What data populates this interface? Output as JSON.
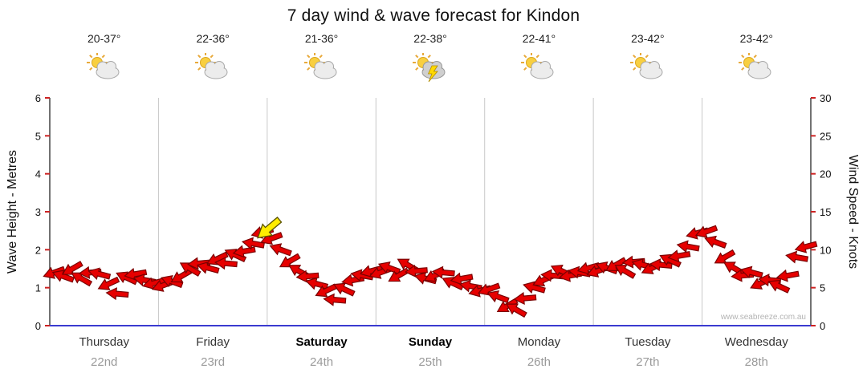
{
  "title": "7 day wind & wave forecast for Kindon",
  "watermark": "www.seabreeze.com.au",
  "colors": {
    "arrow": "#e60000",
    "arrow_outline": "#7a0000",
    "highlight": "#ffec00",
    "highlight_outline": "#5a5200",
    "grid": "#c8c8c8",
    "axis": "#444444",
    "axis_bottom": "#3b3bd0",
    "tick": "#cc2222",
    "tick_text": "#111111"
  },
  "chart_data": {
    "type": "wind-wave-forecast",
    "title": "7 day wind & wave forecast for Kindon",
    "left_axis": {
      "label": "Wave Height - Metres",
      "range": [
        0,
        6
      ],
      "ticks": [
        0,
        1,
        2,
        3,
        4,
        5,
        6
      ]
    },
    "right_axis": {
      "label": "Wind Speed - Knots",
      "range": [
        0,
        30
      ],
      "ticks": [
        0,
        5,
        10,
        15,
        20,
        25,
        30
      ]
    },
    "days": [
      {
        "name": "Thursday",
        "date": "22nd",
        "temp": "20-37°",
        "icon": "sun-cloud",
        "bold": false
      },
      {
        "name": "Friday",
        "date": "23rd",
        "temp": "22-36°",
        "icon": "sun-cloud",
        "bold": false
      },
      {
        "name": "Saturday",
        "date": "24th",
        "temp": "21-36°",
        "icon": "sun-cloud",
        "bold": true
      },
      {
        "name": "Sunday",
        "date": "25th",
        "temp": "22-38°",
        "icon": "storm",
        "bold": true
      },
      {
        "name": "Monday",
        "date": "26th",
        "temp": "22-41°",
        "icon": "sun-cloud",
        "bold": false
      },
      {
        "name": "Tuesday",
        "date": "27th",
        "temp": "23-42°",
        "icon": "sun-cloud",
        "bold": false
      },
      {
        "name": "Wednesday",
        "date": "28th",
        "temp": "23-42°",
        "icon": "sun-cloud",
        "bold": false
      }
    ],
    "samples_per_day": 12,
    "wind_knots": [
      7,
      6.5,
      7.5,
      6.2,
      7,
      6.8,
      5.5,
      4.2,
      6.3,
      6.8,
      6,
      5.6,
      5.3,
      5.8,
      6.5,
      7.5,
      8.2,
      7.6,
      8.8,
      8.2,
      9.3,
      9.8,
      10.8,
      12.3,
      11.5,
      10,
      8.5,
      7.2,
      6.5,
      5.5,
      4.6,
      3.4,
      4.8,
      6,
      6.6,
      7.2,
      7,
      7.6,
      6.6,
      8,
      7.2,
      6.2,
      6.6,
      7,
      5.6,
      6.2,
      5.2,
      4.6,
      4.8,
      3.8,
      2.6,
      2.1,
      3.6,
      5,
      6,
      6.6,
      7.2,
      6.6,
      7,
      7.6,
      7.2,
      7.6,
      8,
      7.2,
      8.4,
      8,
      7.6,
      8,
      8.6,
      9.2,
      10.4,
      12.2,
      12.4,
      11,
      9,
      7.6,
      6.6,
      7,
      5.6,
      6,
      5.2,
      6.6,
      9,
      10.4
    ],
    "wind_dirs_deg": [
      160,
      200,
      150,
      210,
      175,
      195,
      155,
      185,
      205,
      170,
      190,
      165,
      160,
      200,
      150,
      210,
      175,
      195,
      155,
      185,
      205,
      170,
      190,
      165,
      160,
      200,
      150,
      210,
      175,
      195,
      155,
      185,
      205,
      170,
      190,
      165,
      160,
      200,
      150,
      210,
      175,
      195,
      155,
      185,
      205,
      170,
      190,
      165,
      160,
      200,
      150,
      210,
      175,
      195,
      155,
      185,
      205,
      170,
      190,
      165,
      160,
      200,
      150,
      210,
      175,
      195,
      155,
      185,
      205,
      170,
      190,
      165,
      160,
      200,
      150,
      210,
      175,
      195,
      155,
      185,
      205,
      170,
      190,
      165
    ],
    "highlight_arrow": {
      "x_frac": 0.288,
      "knots": 12.8,
      "dir_deg": 140
    }
  }
}
